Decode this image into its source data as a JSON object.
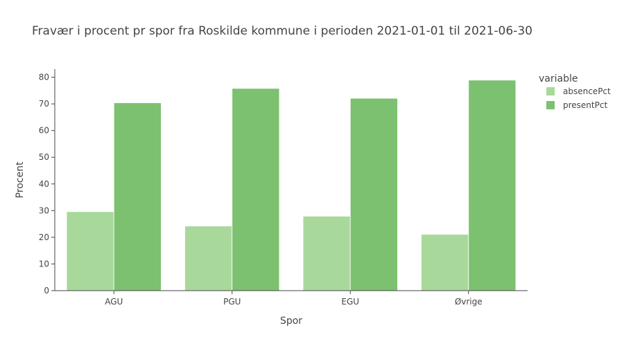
{
  "chart_data": {
    "type": "bar",
    "title": "Fravær i procent pr spor fra Roskilde kommune i perioden 2021-01-01 til 2021-06-30",
    "xlabel": "Spor",
    "ylabel": "Procent",
    "categories": [
      "AGU",
      "PGU",
      "EGU",
      "Øvrige"
    ],
    "series": [
      {
        "name": "absencePct",
        "values": [
          29.6,
          24.2,
          27.9,
          21.1
        ],
        "color": "#a8d99b"
      },
      {
        "name": "presentPct",
        "values": [
          70.4,
          75.8,
          72.1,
          78.9
        ],
        "color": "#7cc16f"
      }
    ],
    "ylim": [
      0,
      83
    ],
    "yticks": [
      0,
      10,
      20,
      30,
      40,
      50,
      60,
      70,
      80
    ],
    "grid": false,
    "legend": {
      "title": "variable",
      "placement": "right"
    }
  }
}
